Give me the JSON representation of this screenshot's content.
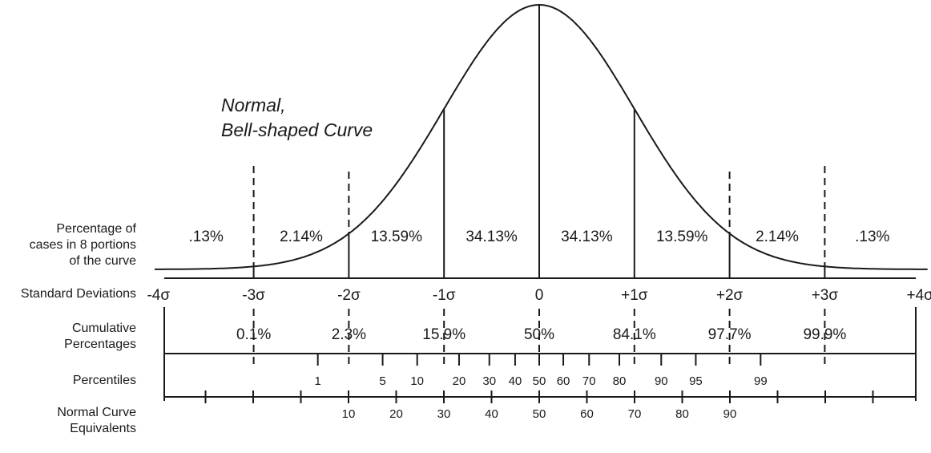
{
  "title": "Normal,\nBell-shaped Curve",
  "row_labels": {
    "percentage": "Percentage of\ncases in 8 portions\nof the curve",
    "std_dev": "Standard Deviations",
    "cumulative": "Cumulative\nPercentages",
    "percentiles": "Percentiles",
    "nce": "Normal Curve\nEquivalents"
  },
  "portions": [
    ".13%",
    "2.14%",
    "13.59%",
    "34.13%",
    "34.13%",
    "13.59%",
    "2.14%",
    ".13%"
  ],
  "std_devs": [
    {
      "z": -4,
      "label": "-4σ"
    },
    {
      "z": -3,
      "label": "-3σ"
    },
    {
      "z": -2,
      "label": "-2σ"
    },
    {
      "z": -1,
      "label": "-1σ"
    },
    {
      "z": 0,
      "label": "0"
    },
    {
      "z": 1,
      "label": "+1σ"
    },
    {
      "z": 2,
      "label": "+2σ"
    },
    {
      "z": 3,
      "label": "+3σ"
    },
    {
      "z": 4,
      "label": "+4σ"
    }
  ],
  "cumulative": [
    {
      "z": -3,
      "label": "0.1%"
    },
    {
      "z": -2,
      "label": "2.3%"
    },
    {
      "z": -1,
      "label": "15.9%"
    },
    {
      "z": 0,
      "label": "50%"
    },
    {
      "z": 1,
      "label": "84.1%"
    },
    {
      "z": 2,
      "label": "97.7%"
    },
    {
      "z": 3,
      "label": "99.9%"
    }
  ],
  "percentiles": [
    {
      "z": -2.326,
      "label": "1"
    },
    {
      "z": -1.645,
      "label": "5"
    },
    {
      "z": -1.282,
      "label": "10"
    },
    {
      "z": -0.842,
      "label": "20"
    },
    {
      "z": -0.524,
      "label": "30"
    },
    {
      "z": -0.253,
      "label": "40"
    },
    {
      "z": 0,
      "label": "50"
    },
    {
      "z": 0.253,
      "label": "60"
    },
    {
      "z": 0.524,
      "label": "70"
    },
    {
      "z": 0.842,
      "label": "80"
    },
    {
      "z": 1.282,
      "label": "90"
    },
    {
      "z": 1.645,
      "label": "95"
    },
    {
      "z": 2.326,
      "label": "99"
    }
  ],
  "nce": [
    "10",
    "20",
    "30",
    "40",
    "50",
    "60",
    "70",
    "80",
    "90"
  ]
}
